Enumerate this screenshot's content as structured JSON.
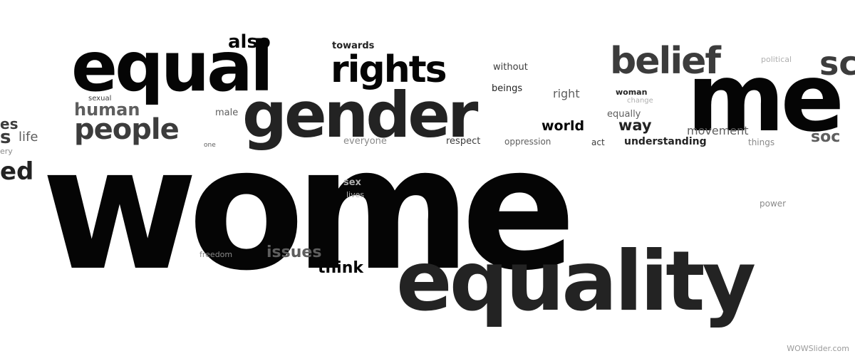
{
  "words": {
    "women": "wome",
    "equality": "equality",
    "gender": "gender",
    "equal": "equal",
    "men": "me",
    "rights": "rights",
    "belief": "belief",
    "people": "people",
    "so_top": "sc",
    "also": "also",
    "towards": "towards",
    "without": "without",
    "political": "political",
    "human": "human",
    "sexual": "sexual",
    "male": "male",
    "beings": "beings",
    "right": "right",
    "woman": "woman",
    "change": "change",
    "equally": "equally",
    "world": "world",
    "way": "way",
    "movement": "movement",
    "soc": "soc",
    "everyone": "everyone",
    "respect": "respect",
    "oppression": "oppression",
    "act": "act",
    "understanding": "understanding",
    "things": "things",
    "one": "one",
    "life": "life",
    "es": "es",
    "s": "s",
    "ery": "ery",
    "ed": "ed",
    "sex": "sex",
    "lives": "lives",
    "power": "power",
    "freedom": "freedom",
    "issues": "issues",
    "think": "think"
  },
  "watermark": "WOWSlider.com"
}
